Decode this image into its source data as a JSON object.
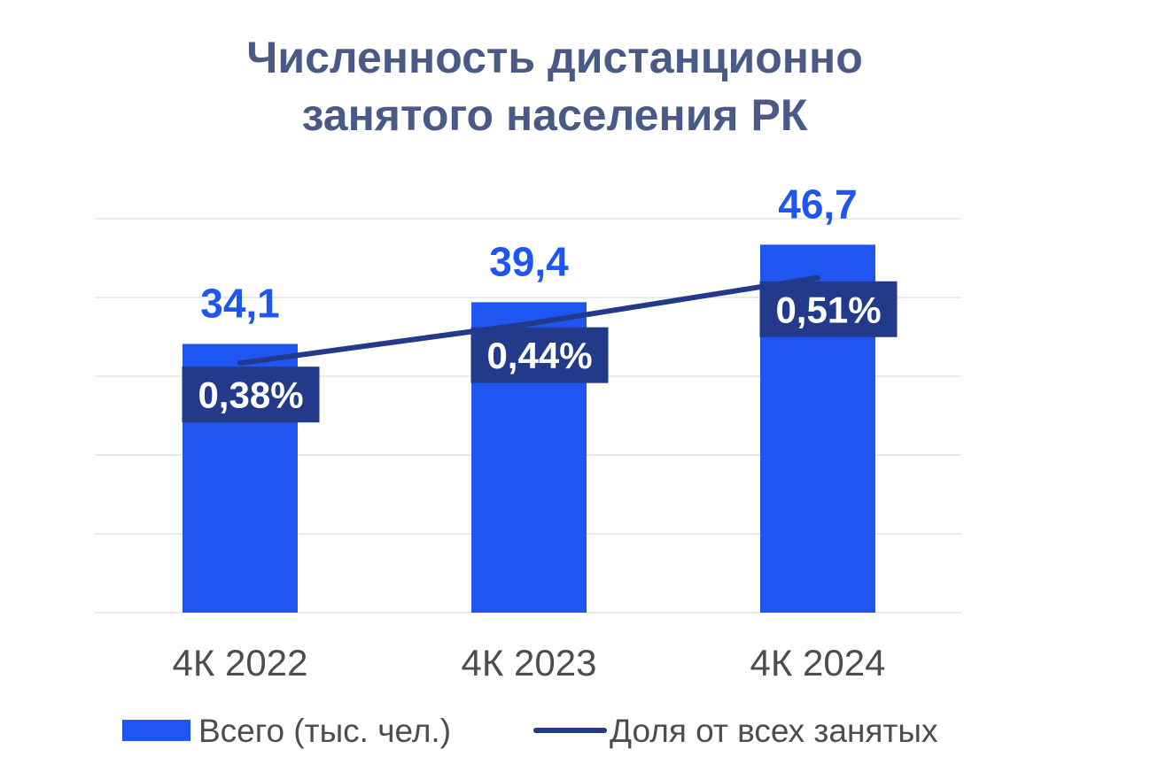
{
  "chart_data": {
    "type": "bar",
    "title_lines": [
      "Численность дистанционно",
      "занятого населения РК"
    ],
    "categories": [
      "4К 2022",
      "4К 2023",
      "4К 2024"
    ],
    "series": [
      {
        "name": "Всего (тыс. чел.)",
        "type": "bar",
        "values": [
          34.1,
          39.4,
          46.7
        ],
        "labels": [
          "34,1",
          "39,4",
          "46,7"
        ],
        "color": "#1f55f0"
      },
      {
        "name": "Доля от всех занятых",
        "type": "line",
        "values": [
          0.38,
          0.44,
          0.51
        ],
        "labels": [
          "0,38%",
          "0,44%",
          "0,51%"
        ],
        "color": "#233a8a"
      }
    ],
    "ylim": [
      0,
      50
    ],
    "line_ylim": [
      0,
      0.6
    ],
    "grid": true,
    "legend": "bottom"
  }
}
